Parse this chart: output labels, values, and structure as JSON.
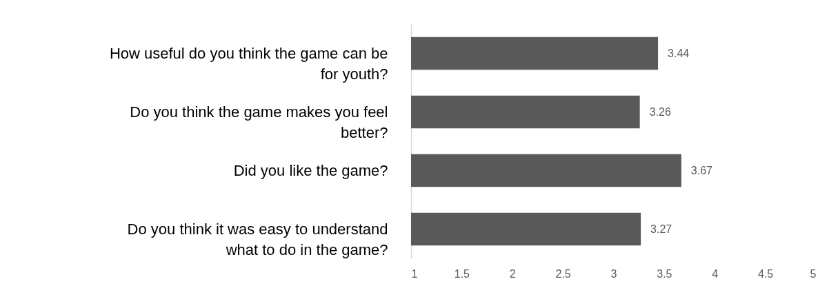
{
  "chart_data": {
    "type": "bar",
    "orientation": "horizontal",
    "categories": [
      "How useful do you think the game can be for youth?",
      "Do you think the game makes you feel better?",
      "Did you like the game?",
      "Do you think it was easy to understand what to do in the game?"
    ],
    "values": [
      3.44,
      3.26,
      3.67,
      3.27
    ],
    "color": "#595959",
    "xlim": [
      1,
      5
    ],
    "xticks": [
      1,
      1.5,
      2,
      2.5,
      3,
      3.5,
      4,
      4.5,
      5
    ],
    "grid": false,
    "data_labels": true
  }
}
